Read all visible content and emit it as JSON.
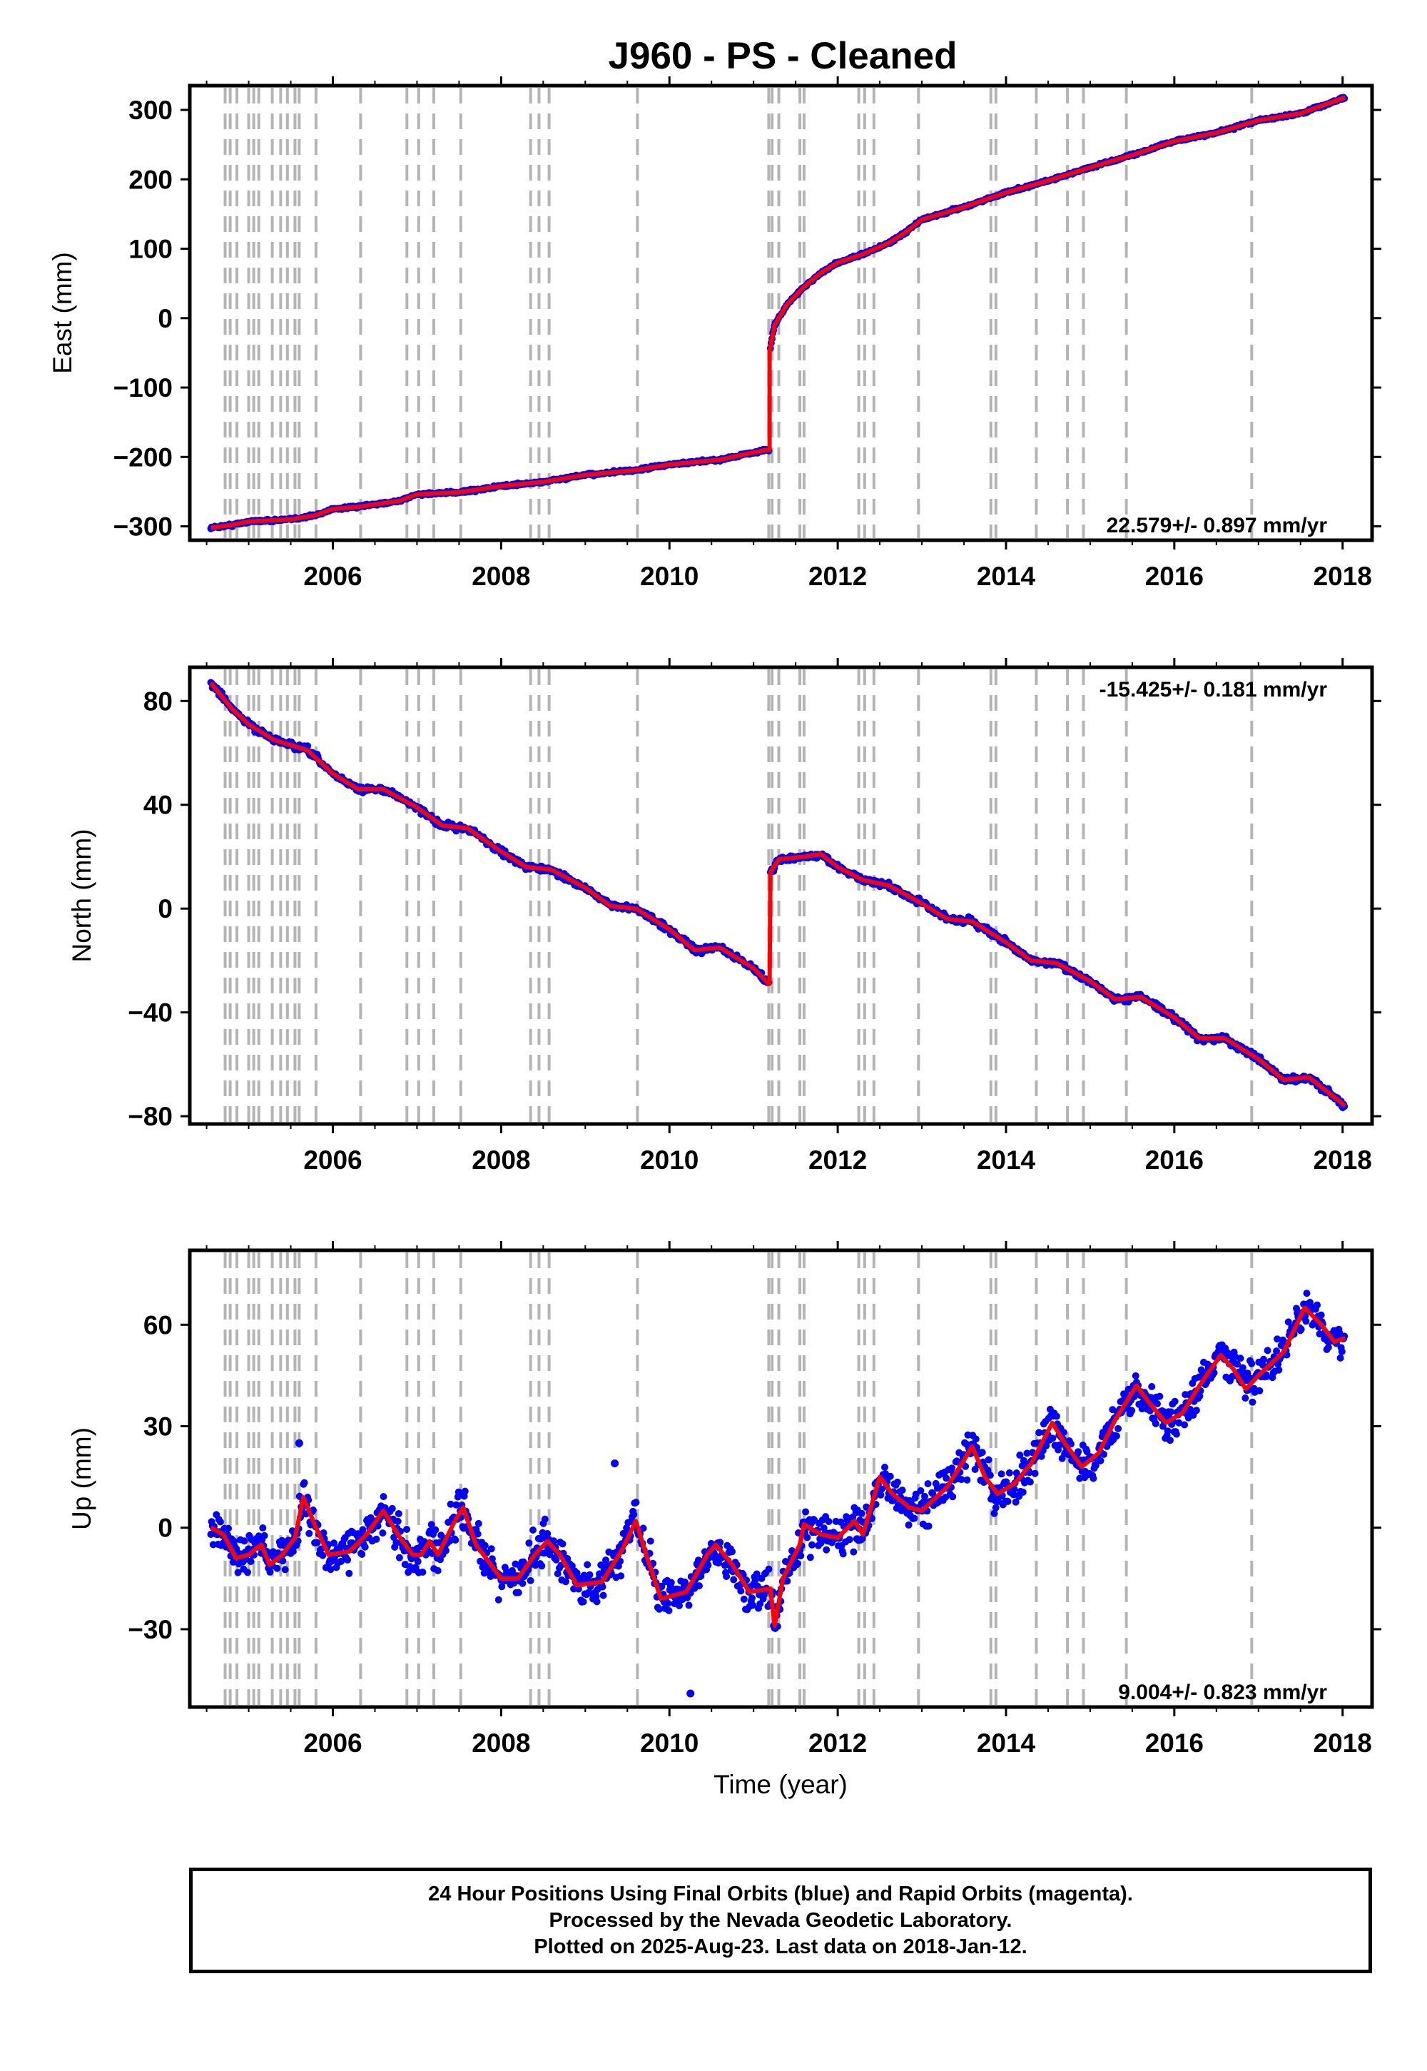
{
  "title": "J960  - PS - Cleaned",
  "colors": {
    "data": "#0000ff",
    "model": "#ff0000",
    "offset_lines": "#b4b4b4",
    "axes": "#000000"
  },
  "footer": {
    "line1": "24 Hour Positions Using Final Orbits (blue) and Rapid Orbits (magenta).",
    "line2": "Processed by the Nevada Geodetic Laboratory.",
    "line3": "Plotted on 2025-Aug-23. Last data on 2018-Jan-12."
  },
  "chart_data": [
    {
      "type": "scatter",
      "component": "east",
      "ylabel": "East (mm)",
      "xlabel": "",
      "xlim": [
        2004.3,
        2018.35
      ],
      "ylim": [
        -320,
        335
      ],
      "xticks": [
        2006,
        2008,
        2010,
        2012,
        2014,
        2016,
        2018
      ],
      "yticks": [
        -300,
        -200,
        -100,
        0,
        100,
        200,
        300
      ],
      "ytick_labels": [
        "−300",
        "−200",
        "−100",
        "0",
        "100",
        "200",
        "300"
      ],
      "velocity_label": "22.579+/- 0.897 mm/yr",
      "velocity_position": "bottom-right",
      "model": [
        [
          2004.55,
          -302
        ],
        [
          2004.8,
          -298
        ],
        [
          2005.0,
          -293
        ],
        [
          2005.5,
          -290
        ],
        [
          2005.8,
          -284
        ],
        [
          2006.0,
          -275
        ],
        [
          2006.3,
          -272
        ],
        [
          2006.8,
          -263
        ],
        [
          2007.0,
          -254
        ],
        [
          2007.5,
          -251
        ],
        [
          2008.0,
          -242
        ],
        [
          2008.5,
          -236
        ],
        [
          2009.0,
          -226
        ],
        [
          2009.6,
          -219
        ],
        [
          2010.0,
          -211
        ],
        [
          2010.6,
          -204
        ],
        [
          2010.9,
          -196
        ],
        [
          2011.15,
          -190
        ],
        [
          2011.19,
          -190
        ],
        [
          2011.19,
          -48
        ],
        [
          2011.25,
          -10
        ],
        [
          2011.4,
          20
        ],
        [
          2011.6,
          45
        ],
        [
          2011.8,
          65
        ],
        [
          2012.0,
          80
        ],
        [
          2012.3,
          92
        ],
        [
          2012.6,
          108
        ],
        [
          2012.8,
          123
        ],
        [
          2013.0,
          142
        ],
        [
          2013.5,
          160
        ],
        [
          2014.0,
          181
        ],
        [
          2014.5,
          198
        ],
        [
          2015.0,
          217
        ],
        [
          2015.5,
          235
        ],
        [
          2016.0,
          255
        ],
        [
          2016.5,
          267
        ],
        [
          2017.0,
          285
        ],
        [
          2017.5,
          295
        ],
        [
          2018.03,
          318
        ]
      ],
      "series": [
        {
          "name": "",
          "values": []
        }
      ]
    },
    {
      "type": "scatter",
      "component": "north",
      "ylabel": "North (mm)",
      "xlabel": "",
      "xlim": [
        2004.3,
        2018.35
      ],
      "ylim": [
        -83,
        93
      ],
      "xticks": [
        2006,
        2008,
        2010,
        2012,
        2014,
        2016,
        2018
      ],
      "yticks": [
        -80,
        -40,
        0,
        40,
        80
      ],
      "ytick_labels": [
        "−80",
        "−40",
        "0",
        "40",
        "80"
      ],
      "velocity_label": "-15.425+/- 0.181 mm/yr",
      "velocity_position": "top-right",
      "model": [
        [
          2004.55,
          87
        ],
        [
          2004.8,
          77
        ],
        [
          2005.0,
          71
        ],
        [
          2005.3,
          65
        ],
        [
          2005.7,
          61
        ],
        [
          2006.0,
          52
        ],
        [
          2006.3,
          46
        ],
        [
          2006.6,
          46
        ],
        [
          2007.0,
          39
        ],
        [
          2007.3,
          32
        ],
        [
          2007.6,
          31
        ],
        [
          2008.0,
          22
        ],
        [
          2008.3,
          16
        ],
        [
          2008.6,
          15
        ],
        [
          2009.0,
          8
        ],
        [
          2009.3,
          1
        ],
        [
          2009.6,
          0
        ],
        [
          2010.0,
          -8
        ],
        [
          2010.3,
          -16
        ],
        [
          2010.6,
          -15
        ],
        [
          2011.0,
          -23
        ],
        [
          2011.18,
          -29
        ],
        [
          2011.19,
          -29
        ],
        [
          2011.2,
          14
        ],
        [
          2011.3,
          19
        ],
        [
          2011.6,
          20
        ],
        [
          2011.8,
          21
        ],
        [
          2012.0,
          16
        ],
        [
          2012.3,
          11
        ],
        [
          2012.6,
          9
        ],
        [
          2013.0,
          2
        ],
        [
          2013.3,
          -4
        ],
        [
          2013.6,
          -5
        ],
        [
          2014.0,
          -13
        ],
        [
          2014.3,
          -20
        ],
        [
          2014.6,
          -21
        ],
        [
          2015.0,
          -28
        ],
        [
          2015.3,
          -35
        ],
        [
          2015.6,
          -34
        ],
        [
          2016.0,
          -42
        ],
        [
          2016.3,
          -50
        ],
        [
          2016.6,
          -50
        ],
        [
          2017.0,
          -58
        ],
        [
          2017.3,
          -66
        ],
        [
          2017.6,
          -65
        ],
        [
          2018.03,
          -76
        ]
      ],
      "series": [
        {
          "name": "",
          "values": []
        }
      ]
    },
    {
      "type": "scatter",
      "component": "up",
      "ylabel": "Up (mm)",
      "xlabel": "Time (year)",
      "xlim": [
        2004.3,
        2018.35
      ],
      "ylim": [
        -53,
        82
      ],
      "xticks": [
        2006,
        2008,
        2010,
        2012,
        2014,
        2016,
        2018
      ],
      "yticks": [
        -30,
        0,
        30,
        60
      ],
      "ytick_labels": [
        "−30",
        "0",
        "30",
        "60"
      ],
      "velocity_label": "9.004+/- 0.823 mm/yr",
      "velocity_position": "bottom-right",
      "model": [
        [
          2004.55,
          0
        ],
        [
          2004.7,
          -2
        ],
        [
          2004.85,
          -9
        ],
        [
          2005.0,
          -8
        ],
        [
          2005.15,
          -5
        ],
        [
          2005.25,
          -11
        ],
        [
          2005.4,
          -8
        ],
        [
          2005.55,
          -3
        ],
        [
          2005.65,
          9
        ],
        [
          2005.8,
          0
        ],
        [
          2005.95,
          -8
        ],
        [
          2006.2,
          -7
        ],
        [
          2006.4,
          -2
        ],
        [
          2006.6,
          5
        ],
        [
          2006.8,
          -3
        ],
        [
          2006.95,
          -8
        ],
        [
          2007.05,
          -8
        ],
        [
          2007.15,
          -4
        ],
        [
          2007.25,
          -8
        ],
        [
          2007.45,
          2
        ],
        [
          2007.55,
          6
        ],
        [
          2007.7,
          -5
        ],
        [
          2008.0,
          -15
        ],
        [
          2008.2,
          -15
        ],
        [
          2008.4,
          -8
        ],
        [
          2008.55,
          -4
        ],
        [
          2008.7,
          -8
        ],
        [
          2008.9,
          -17
        ],
        [
          2009.2,
          -16
        ],
        [
          2009.45,
          -6
        ],
        [
          2009.6,
          2
        ],
        [
          2009.75,
          -10
        ],
        [
          2009.9,
          -21
        ],
        [
          2010.2,
          -19
        ],
        [
          2010.45,
          -8
        ],
        [
          2010.55,
          -5
        ],
        [
          2010.75,
          -11
        ],
        [
          2010.95,
          -19
        ],
        [
          2011.2,
          -18
        ],
        [
          2011.25,
          -29
        ],
        [
          2011.35,
          -15
        ],
        [
          2011.55,
          -5
        ],
        [
          2011.6,
          1
        ],
        [
          2011.8,
          -2
        ],
        [
          2012.0,
          -3
        ],
        [
          2012.2,
          2
        ],
        [
          2012.3,
          -2
        ],
        [
          2012.5,
          15
        ],
        [
          2012.65,
          10
        ],
        [
          2012.85,
          6
        ],
        [
          2013.0,
          5
        ],
        [
          2013.3,
          12
        ],
        [
          2013.6,
          24
        ],
        [
          2013.75,
          15
        ],
        [
          2013.9,
          10
        ],
        [
          2014.1,
          13
        ],
        [
          2014.3,
          19
        ],
        [
          2014.55,
          31
        ],
        [
          2014.7,
          25
        ],
        [
          2014.9,
          18
        ],
        [
          2015.1,
          22
        ],
        [
          2015.3,
          32
        ],
        [
          2015.55,
          42
        ],
        [
          2015.7,
          37
        ],
        [
          2015.9,
          31
        ],
        [
          2016.1,
          34
        ],
        [
          2016.3,
          42
        ],
        [
          2016.55,
          51
        ],
        [
          2016.7,
          47
        ],
        [
          2016.85,
          41
        ],
        [
          2017.0,
          45
        ],
        [
          2017.3,
          52
        ],
        [
          2017.55,
          65
        ],
        [
          2017.75,
          60
        ],
        [
          2017.9,
          55
        ],
        [
          2018.03,
          56
        ]
      ],
      "series": [
        {
          "name": "",
          "values": []
        }
      ]
    }
  ],
  "offset_epochs": [
    2004.72,
    2004.78,
    2004.86,
    2005.0,
    2005.06,
    2005.12,
    2005.28,
    2005.38,
    2005.46,
    2005.55,
    2005.6,
    2005.8,
    2006.33,
    2006.88,
    2007.02,
    2007.2,
    2007.52,
    2008.35,
    2008.45,
    2008.57,
    2009.62,
    2011.18,
    2011.22,
    2011.3,
    2011.55,
    2011.6,
    2012.25,
    2012.32,
    2012.43,
    2012.96,
    2013.82,
    2013.88,
    2014.36,
    2014.73,
    2014.92,
    2015.43,
    2016.92
  ]
}
